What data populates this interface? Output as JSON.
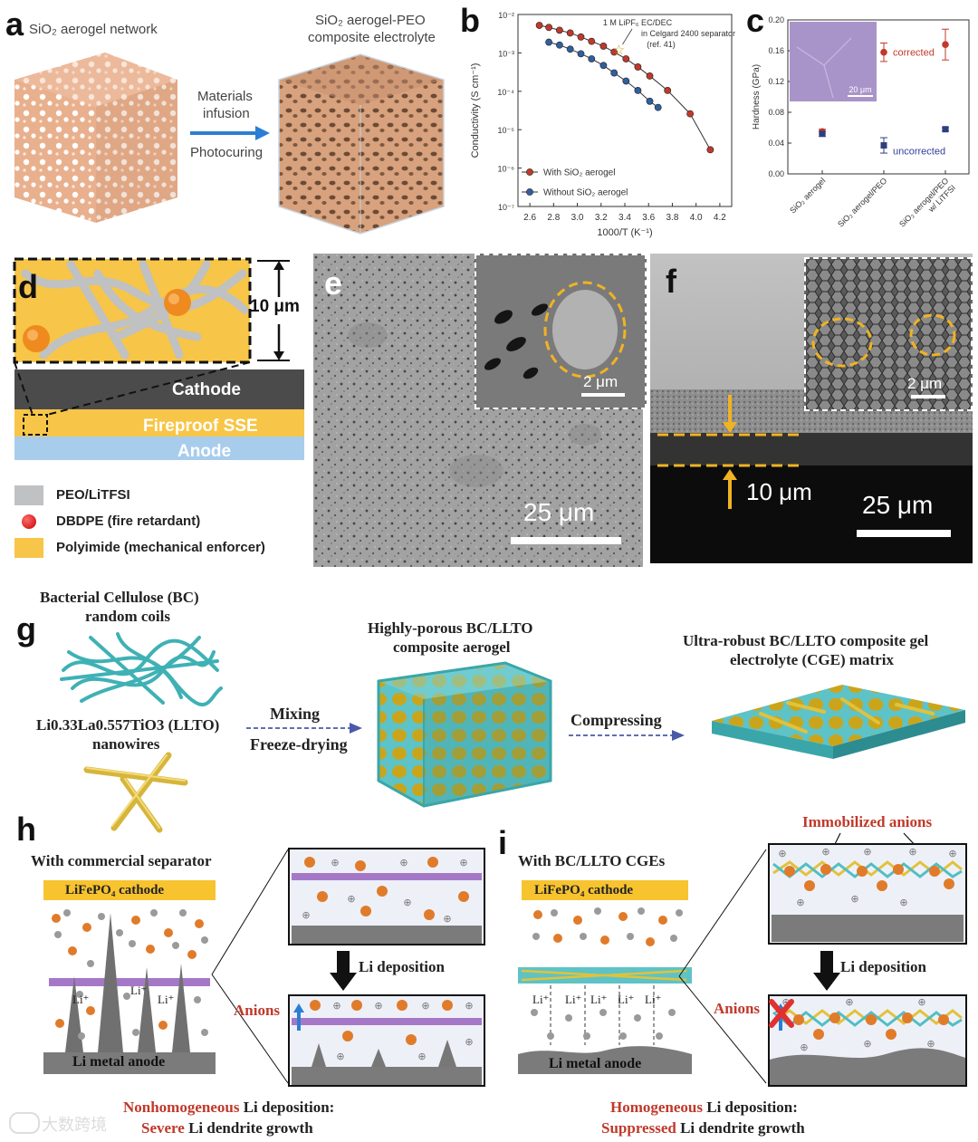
{
  "panel_labels": {
    "a": "a",
    "b": "b",
    "c": "c",
    "d": "d",
    "e": "e",
    "f": "f",
    "g": "g",
    "h": "h",
    "i": "i"
  },
  "panel_a": {
    "left_caption": "SiO₂ aerogel network",
    "right_caption_1": "SiO₂ aerogel-PEO",
    "right_caption_2": "composite electrolyte",
    "arrow_top_1": "Materials",
    "arrow_top_2": "infusion",
    "arrow_bottom": "Photocuring"
  },
  "panel_b": {
    "annotation_1": "1 M LiPF₆ EC/DEC",
    "annotation_2": "in Celgard 2400 separator",
    "annotation_3": "(ref. 41)",
    "legend_with": "With SiO₂ aerogel",
    "legend_without": "Without SiO₂ aerogel"
  },
  "panel_c": {
    "corrected": "corrected",
    "uncorrected": "uncorrected",
    "inset_scale": "20 μm"
  },
  "panel_d": {
    "thickness": "10 μm",
    "cathode": "Cathode",
    "sse": "Fireproof SSE",
    "anode": "Anode",
    "legend_peo": "PEO/LiTFSI",
    "legend_dbdpe": "DBDPE (fire retardant)",
    "legend_pi": "Polyimide (mechanical enforcer)"
  },
  "panel_e": {
    "inset_scale": "2 μm",
    "scale": "25 μm"
  },
  "panel_f": {
    "inset_scale": "2 μm",
    "thickness": "10 μm",
    "scale": "25 μm"
  },
  "panel_g": {
    "bc_1": "Bacterial Cellulose (BC)",
    "bc_2": "random coils",
    "llto_1": "Li0.33La0.557TiO3 (LLTO)",
    "llto_2": "nanowires",
    "mixing": "Mixing",
    "freeze": "Freeze-drying",
    "aerogel_1": "Highly-porous BC/LLTO",
    "aerogel_2": "composite aerogel",
    "compressing": "Compressing",
    "cge_1": "Ultra-robust BC/LLTO composite gel",
    "cge_2": "electrolyte (CGE) matrix"
  },
  "panel_h": {
    "title": "With commercial separator",
    "cathode": "LiFePO₄ cathode",
    "anode": "Li metal anode",
    "li": "Li⁺",
    "deposition": "Li deposition",
    "anions": "Anions",
    "caption_1a": "Nonhomogeneous",
    "caption_1b": " Li deposition:",
    "caption_2a": "Severe",
    "caption_2b": " Li dendrite growth"
  },
  "panel_i": {
    "title": "With BC/LLTO CGEs",
    "cathode": "LiFePO₄ cathode",
    "anode": "Li metal anode",
    "li": "Li⁺",
    "immobilized": "Immobilized anions",
    "deposition": "Li deposition",
    "anions": "Anions",
    "caption_1a": "Homogeneous",
    "caption_1b": " Li deposition:",
    "caption_2a": "Suppressed",
    "caption_2b": " Li dendrite growth"
  },
  "watermark": "大数跨境",
  "colors": {
    "accent_red": "#c0392b",
    "gold": "#f5c542",
    "teal": "#4fbfc4",
    "gray_dark": "#555555",
    "orange_ion": "#e07b2a"
  },
  "chart_data": [
    {
      "type": "scatter",
      "title": "",
      "xlabel": "1000/T (K⁻¹)",
      "ylabel": "Conductivity (S cm⁻¹)",
      "xlim": [
        2.5,
        4.3
      ],
      "ylim_log10": [
        -7,
        -2
      ],
      "y_scale": "log",
      "x_ticks": [
        "2.6",
        "2.8",
        "3.0",
        "3.2",
        "3.4",
        "3.6",
        "3.8",
        "4.0",
        "4.2"
      ],
      "y_ticks": [
        "10⁻⁷",
        "10⁻⁶",
        "10⁻⁵",
        "10⁻⁴",
        "10⁻³",
        "10⁻²"
      ],
      "series": [
        {
          "name": "With SiO₂ aerogel",
          "color": "#c0392b",
          "x": [
            2.68,
            2.76,
            2.85,
            2.94,
            3.03,
            3.12,
            3.22,
            3.31,
            3.41,
            3.51,
            3.61,
            3.76,
            3.95,
            4.12
          ],
          "y": [
            0.0052,
            0.0046,
            0.0039,
            0.0033,
            0.0026,
            0.002,
            0.0015,
            0.00105,
            0.0007,
            0.00043,
            0.00025,
            0.000105,
            2.6e-05,
            3e-06
          ]
        },
        {
          "name": "Without SiO₂ aerogel",
          "color": "#2f5f9e",
          "x": [
            2.76,
            2.85,
            2.94,
            3.03,
            3.12,
            3.22,
            3.31,
            3.41,
            3.51,
            3.61,
            3.68
          ],
          "y": [
            0.0019,
            0.0016,
            0.00125,
            0.00095,
            0.0007,
            0.00047,
            0.0003,
            0.000185,
            0.000105,
            5.5e-05,
            3.8e-05
          ]
        },
        {
          "name": "",
          "color": "#d4a017",
          "x": [
            3.35
          ],
          "y": [
            0.0012
          ],
          "marker": "star"
        }
      ]
    },
    {
      "type": "scatter",
      "title": "",
      "xlabel": "",
      "ylabel": "Hardness (GPa)",
      "ylim": [
        0,
        0.2
      ],
      "y_ticks": [
        "0.00",
        "0.04",
        "0.08",
        "0.12",
        "0.16",
        "0.20"
      ],
      "categories": [
        "SiO₂ aerogel",
        "SiO₂ aerogel/PEO",
        "SiO₂ aerogel/PEO w/ LiTFSI"
      ],
      "series": [
        {
          "name": "corrected",
          "color": "#c0392b",
          "values": [
            0.055,
            0.158,
            0.168
          ],
          "errors": [
            0.003,
            0.012,
            0.02
          ]
        },
        {
          "name": "uncorrected",
          "color": "#2f3f7e",
          "values": [
            0.052,
            0.037,
            0.058
          ],
          "errors": [
            0.003,
            0.01,
            0.002
          ]
        }
      ]
    }
  ]
}
